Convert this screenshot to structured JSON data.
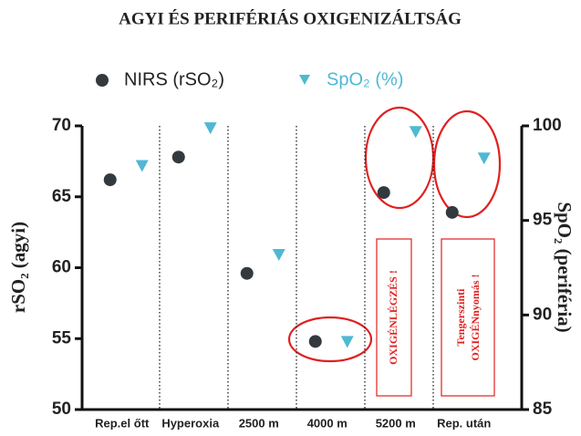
{
  "chart_data": {
    "type": "scatter",
    "title": "AGYI ÉS PERIFÉRIÁS OXIGENIZÁLTSÁG",
    "ylabel": "rSO₂ (agyi)",
    "y2label": "SpO₂ (periféria)",
    "categories": [
      "Rep.el őtt",
      "Hyperoxia",
      "2500 m",
      "4000 m",
      "5200 m",
      "Rep. után"
    ],
    "series": [
      {
        "name": "NIRS  (rSO₂)",
        "color": "#333a3f",
        "marker": "circle",
        "values": [
          66.2,
          67.8,
          59.6,
          54.8,
          65.3,
          63.9
        ]
      },
      {
        "name": "SpO₂ (%)",
        "color": "#4fb8d3",
        "marker": "triangle",
        "axis": "y2",
        "values": [
          97.9,
          99.9,
          93.2,
          88.6,
          99.7,
          98.3
        ]
      }
    ],
    "ylim": [
      50,
      70
    ],
    "yticks": [
      50,
      55,
      60,
      65,
      70
    ],
    "y2lim": [
      85,
      100
    ],
    "y2ticks": [
      85,
      90,
      95,
      100
    ],
    "annotations": [
      "OXIGÉNLÉGZÉS !",
      "Tengerszinti",
      "OXIGÉNnyomás !"
    ],
    "annotation_color": "#e02020"
  }
}
